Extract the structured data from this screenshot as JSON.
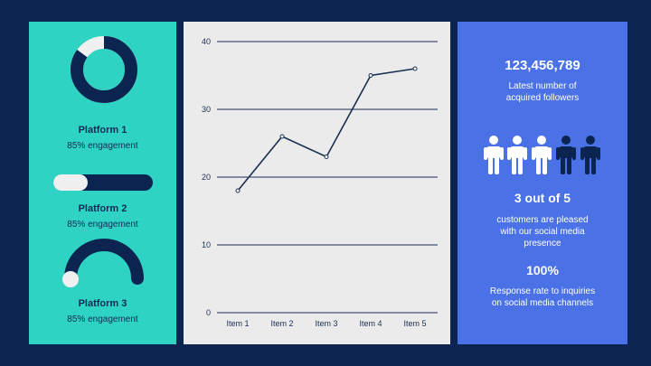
{
  "platforms": [
    {
      "name": "Platform 1",
      "engagement_text": "85% engagement",
      "engagement": 0.85
    },
    {
      "name": "Platform 2",
      "engagement_text": "85% engagement",
      "engagement": 0.85
    },
    {
      "name": "Platform 3",
      "engagement_text": "85% engagement",
      "engagement": 0.85
    }
  ],
  "stats": {
    "followers_value": "123,456,789",
    "followers_caption": [
      "Latest number of",
      "acquired followers"
    ],
    "ratio_value": "3 out of 5",
    "ratio_caption": [
      "customers are pleased",
      "with our social media",
      "presence"
    ],
    "response_value": "100%",
    "response_caption": [
      "Response rate to inquiries",
      "on social media channels"
    ],
    "people_pleased": 3,
    "people_total": 5
  },
  "colors": {
    "teal": "#2ed3c3",
    "navy": "#0b2550",
    "light": "#f0f0f0",
    "blue": "#4a71e5",
    "line": "#1b2f50"
  },
  "chart_data": {
    "type": "line",
    "categories": [
      "Item 1",
      "Item 2",
      "Item 3",
      "Item 4",
      "Item 5"
    ],
    "series": [
      {
        "values": [
          18,
          26,
          23,
          35,
          36
        ]
      }
    ],
    "ylim": [
      0,
      40
    ],
    "yticks": [
      0,
      10,
      20,
      30,
      40
    ],
    "grid": true
  }
}
